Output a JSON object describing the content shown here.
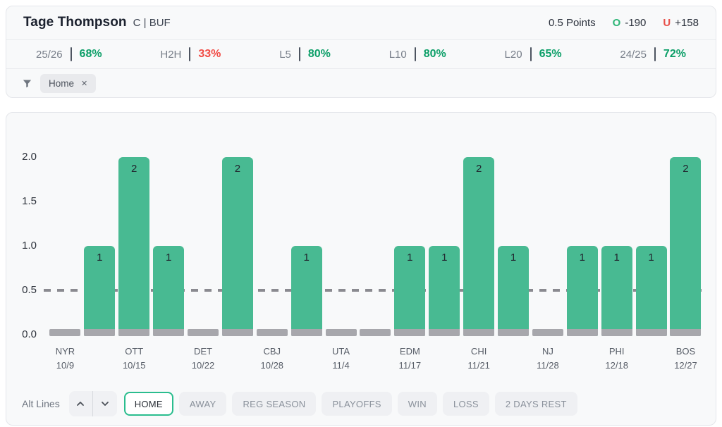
{
  "header": {
    "player": "Tage Thompson",
    "position_team": "C | BUF",
    "line": "0.5 Points",
    "over_label": "O",
    "over_odds": "-190",
    "under_label": "U",
    "under_odds": "+158"
  },
  "colors": {
    "over_green": "#2cb576",
    "under_red": "#e8504a",
    "stat_green": "#0a9e67",
    "stat_red": "#f14a44",
    "bar_green": "#48ba92",
    "bar_gray": "#a7a7ac",
    "dash_gray": "#8a8a90",
    "active_button_border": "#2abd8e"
  },
  "stats": [
    {
      "label": "25/26",
      "value": "68%",
      "color": "green"
    },
    {
      "label": "H2H",
      "value": "33%",
      "color": "red"
    },
    {
      "label": "L5",
      "value": "80%",
      "color": "green"
    },
    {
      "label": "L10",
      "value": "80%",
      "color": "green"
    },
    {
      "label": "L20",
      "value": "65%",
      "color": "green"
    },
    {
      "label": "24/25",
      "value": "72%",
      "color": "green"
    }
  ],
  "filters": {
    "chips": [
      {
        "label": "Home",
        "close": "✕"
      }
    ]
  },
  "chart_data": {
    "type": "bar",
    "title": "",
    "xlabel": "",
    "ylabel": "",
    "ylim": [
      0,
      2.2
    ],
    "yticks": [
      0,
      0.5,
      1,
      1.5,
      2
    ],
    "prop_line": 0.5,
    "grid": false,
    "legend": false,
    "games": [
      {
        "team": "NYR",
        "date": "10/9",
        "value": 0
      },
      {
        "team": "",
        "date": "",
        "value": 1
      },
      {
        "team": "OTT",
        "date": "10/15",
        "value": 2
      },
      {
        "team": "",
        "date": "",
        "value": 1
      },
      {
        "team": "DET",
        "date": "10/22",
        "value": 0
      },
      {
        "team": "",
        "date": "",
        "value": 2
      },
      {
        "team": "CBJ",
        "date": "10/28",
        "value": 0
      },
      {
        "team": "",
        "date": "",
        "value": 1
      },
      {
        "team": "UTA",
        "date": "11/4",
        "value": 0
      },
      {
        "team": "",
        "date": "",
        "value": 0
      },
      {
        "team": "EDM",
        "date": "11/17",
        "value": 1
      },
      {
        "team": "",
        "date": "",
        "value": 1
      },
      {
        "team": "CHI",
        "date": "11/21",
        "value": 2
      },
      {
        "team": "",
        "date": "",
        "value": 1
      },
      {
        "team": "NJ",
        "date": "11/28",
        "value": 0
      },
      {
        "team": "",
        "date": "",
        "value": 1
      },
      {
        "team": "PHI",
        "date": "12/18",
        "value": 1
      },
      {
        "team": "",
        "date": "",
        "value": 1
      },
      {
        "team": "BOS",
        "date": "12/27",
        "value": 2
      }
    ]
  },
  "toolbar": {
    "alt_lines_label": "Alt Lines",
    "buttons": [
      {
        "label": "HOME",
        "active": true
      },
      {
        "label": "AWAY",
        "active": false
      },
      {
        "label": "REG SEASON",
        "active": false
      },
      {
        "label": "PLAYOFFS",
        "active": false
      },
      {
        "label": "WIN",
        "active": false
      },
      {
        "label": "LOSS",
        "active": false
      },
      {
        "label": "2 DAYS REST",
        "active": false
      }
    ]
  }
}
